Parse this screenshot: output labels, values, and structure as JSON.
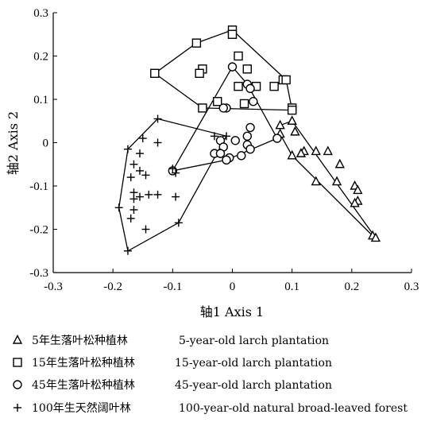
{
  "chart_data": {
    "type": "scatter",
    "xlabel": "轴1 Axis 1",
    "ylabel": "轴2 Axis 2",
    "xlim": [
      -0.3,
      0.3
    ],
    "ylim": [
      -0.3,
      0.3
    ],
    "xticks": [
      -0.3,
      -0.2,
      -0.1,
      0,
      0.1,
      0.2,
      0.3
    ],
    "yticks": [
      -0.3,
      -0.2,
      -0.1,
      0,
      0.1,
      0.2,
      0.3
    ],
    "xtick_labels": [
      "-0.3",
      "-0.2",
      "-0.1",
      "0",
      "0.1",
      "0.2",
      "0.3"
    ],
    "ytick_labels": [
      "-0.3",
      "-0.2",
      "-0.1",
      "0",
      "0.1",
      "0.2",
      "0.3"
    ],
    "grid": false,
    "legend_position": "bottom",
    "series": [
      {
        "name": "5年生落叶松种植林 5-year-old larch plantation",
        "label_zh": "5年生落叶松种植林",
        "label_en": "5-year-old larch plantation",
        "marker": "triangle",
        "points": [
          [
            0.08,
            0.04
          ],
          [
            0.1,
            0.05
          ],
          [
            0.08,
            0.02
          ],
          [
            0.105,
            0.025
          ],
          [
            0.12,
            -0.02
          ],
          [
            0.14,
            -0.02
          ],
          [
            0.16,
            -0.02
          ],
          [
            0.1,
            -0.03
          ],
          [
            0.115,
            -0.025
          ],
          [
            0.18,
            -0.05
          ],
          [
            0.14,
            -0.09
          ],
          [
            0.175,
            -0.09
          ],
          [
            0.205,
            -0.1
          ],
          [
            0.21,
            -0.11
          ],
          [
            0.21,
            -0.135
          ],
          [
            0.205,
            -0.14
          ],
          [
            0.235,
            -0.215
          ],
          [
            0.24,
            -0.22
          ]
        ],
        "hull": [
          [
            0.08,
            0.04
          ],
          [
            0.1,
            0.05
          ],
          [
            0.24,
            -0.22
          ],
          [
            0.235,
            -0.215
          ],
          [
            0.1,
            -0.03
          ],
          [
            0.08,
            0.02
          ]
        ]
      },
      {
        "name": "15年生落叶松种植林 15-year-old larch plantation",
        "label_zh": "15年生落叶松种植林",
        "label_en": "15-year-old larch plantation",
        "marker": "square",
        "points": [
          [
            -0.13,
            0.16
          ],
          [
            -0.06,
            0.23
          ],
          [
            -0.05,
            0.17
          ],
          [
            -0.055,
            0.16
          ],
          [
            0,
            0.26
          ],
          [
            0,
            0.25
          ],
          [
            0.01,
            0.2
          ],
          [
            0.025,
            0.17
          ],
          [
            0.01,
            0.13
          ],
          [
            0.04,
            0.13
          ],
          [
            0.07,
            0.13
          ],
          [
            0.085,
            0.145
          ],
          [
            0.09,
            0.145
          ],
          [
            -0.05,
            0.08
          ],
          [
            -0.025,
            0.095
          ],
          [
            0.02,
            0.09
          ],
          [
            0.1,
            0.08
          ],
          [
            0.1,
            0.075
          ]
        ],
        "hull": [
          [
            -0.13,
            0.16
          ],
          [
            -0.06,
            0.23
          ],
          [
            0,
            0.26
          ],
          [
            0.09,
            0.145
          ],
          [
            0.1,
            0.075
          ],
          [
            -0.05,
            0.08
          ]
        ]
      },
      {
        "name": "45年生落叶松种植林 45-year-old larch plantation",
        "label_zh": "45年生落叶松种植林",
        "label_en": "45-year-old larch plantation",
        "marker": "circle",
        "points": [
          [
            0,
            0.175
          ],
          [
            0.025,
            0.135
          ],
          [
            0.03,
            0.125
          ],
          [
            0.035,
            0.095
          ],
          [
            -0.01,
            0.08
          ],
          [
            -0.015,
            0.08
          ],
          [
            0.03,
            0.035
          ],
          [
            0.075,
            0.01
          ],
          [
            -0.02,
            0.005
          ],
          [
            0.005,
            0.005
          ],
          [
            0.025,
            0.015
          ],
          [
            0.025,
            -0.005
          ],
          [
            -0.015,
            -0.01
          ],
          [
            0.03,
            -0.015
          ],
          [
            -0.03,
            -0.025
          ],
          [
            -0.02,
            -0.025
          ],
          [
            0.015,
            -0.03
          ],
          [
            -0.005,
            -0.035
          ],
          [
            -0.01,
            -0.04
          ],
          [
            -0.1,
            -0.065
          ]
        ],
        "hull": [
          [
            -0.1,
            -0.065
          ],
          [
            0,
            0.175
          ],
          [
            0.025,
            0.135
          ],
          [
            0.075,
            0.01
          ],
          [
            -0.01,
            -0.04
          ]
        ]
      },
      {
        "name": "100年生天然阔叶林 100-year-old natural broad-leaved forest",
        "label_zh": "100年生天然阔叶林",
        "label_en": "100-year-old natural broad-leaved forest",
        "marker": "plus",
        "points": [
          [
            -0.125,
            0.055
          ],
          [
            -0.15,
            0.01
          ],
          [
            -0.125,
            0
          ],
          [
            -0.175,
            -0.015
          ],
          [
            -0.155,
            -0.025
          ],
          [
            -0.165,
            -0.05
          ],
          [
            -0.155,
            -0.065
          ],
          [
            -0.145,
            -0.075
          ],
          [
            -0.17,
            -0.08
          ],
          [
            -0.165,
            -0.115
          ],
          [
            -0.165,
            -0.13
          ],
          [
            -0.155,
            -0.125
          ],
          [
            -0.14,
            -0.12
          ],
          [
            -0.125,
            -0.12
          ],
          [
            -0.165,
            -0.155
          ],
          [
            -0.19,
            -0.15
          ],
          [
            -0.17,
            -0.175
          ],
          [
            -0.095,
            -0.125
          ],
          [
            -0.145,
            -0.2
          ],
          [
            -0.09,
            -0.185
          ],
          [
            -0.175,
            -0.25
          ],
          [
            -0.095,
            -0.07
          ],
          [
            -0.1,
            -0.06
          ],
          [
            -0.03,
            0.015
          ],
          [
            -0.01,
            0.015
          ]
        ],
        "hull": [
          [
            -0.125,
            0.055
          ],
          [
            -0.01,
            0.015
          ],
          [
            -0.09,
            -0.185
          ],
          [
            -0.175,
            -0.25
          ],
          [
            -0.19,
            -0.15
          ],
          [
            -0.175,
            -0.015
          ]
        ]
      }
    ]
  }
}
